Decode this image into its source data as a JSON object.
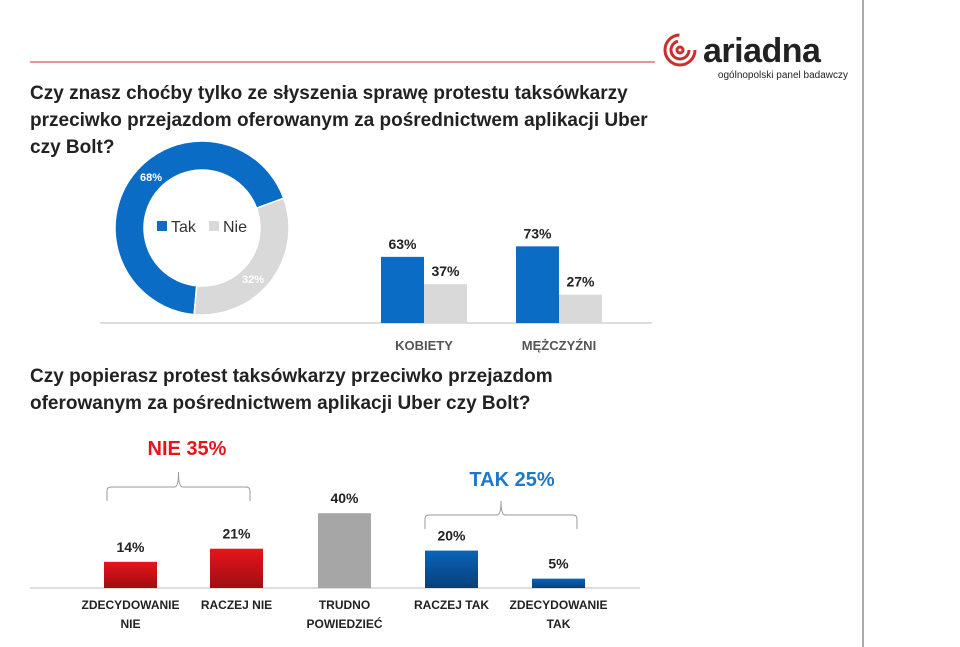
{
  "logo": {
    "brand": "ariadna",
    "tagline": "ogólnopolski panel badawczy",
    "color": "#c8302f"
  },
  "question1": "Czy znasz choćby tylko ze słyszenia sprawę protestu taksówkarzy przeciwko przejazdom oferowanym za pośrednictwem aplikacji Uber czy Bolt?",
  "question2": "Czy popierasz protest taksówkarzy przeciwko przejazdom oferowanym za pośrednictwem aplikacji Uber czy Bolt?",
  "chart_data": [
    {
      "type": "pie",
      "variant": "donut",
      "legend": [
        "Tak",
        "Nie"
      ],
      "legend_placement": "center",
      "categories": [
        "Tak",
        "Nie"
      ],
      "values": [
        68,
        32
      ],
      "labels": [
        "68%",
        "32%"
      ],
      "colors": [
        "#0a6cc4",
        "#d9d9d9"
      ]
    },
    {
      "type": "bar",
      "categories": [
        "KOBIETY",
        "MĘŻCZYŹNI"
      ],
      "series": [
        {
          "name": "Tak",
          "values": [
            63,
            73
          ],
          "labels": [
            "63%",
            "73%"
          ],
          "color": "#0a6cc4"
        },
        {
          "name": "Nie",
          "values": [
            37,
            27
          ],
          "labels": [
            "37%",
            "27%"
          ],
          "color": "#d9d9d9"
        }
      ],
      "ylim": [
        0,
        100
      ],
      "grid": false
    },
    {
      "type": "bar",
      "categories": [
        "ZDECYDOWANIE NIE",
        "RACZEJ NIE",
        "TRUDNO POWIEDZIEĆ",
        "RACZEJ TAK",
        "ZDECYDOWANIE TAK"
      ],
      "values": [
        14,
        21,
        40,
        20,
        5
      ],
      "labels": [
        "14%",
        "21%",
        "40%",
        "20%",
        "5%"
      ],
      "colors": [
        "#e8141b",
        "#e8141b",
        "#a6a6a6",
        "#0a63b8",
        "#0a63b8"
      ],
      "ylim": [
        0,
        45
      ],
      "grid": false,
      "annotations": [
        {
          "text": "NIE 35%",
          "spans": [
            "ZDECYDOWANIE NIE",
            "RACZEJ NIE"
          ],
          "color": "#e8141b"
        },
        {
          "text": "TAK 25%",
          "spans": [
            "RACZEJ TAK",
            "ZDECYDOWANIE TAK"
          ],
          "color": "#1f77c8"
        }
      ]
    }
  ]
}
